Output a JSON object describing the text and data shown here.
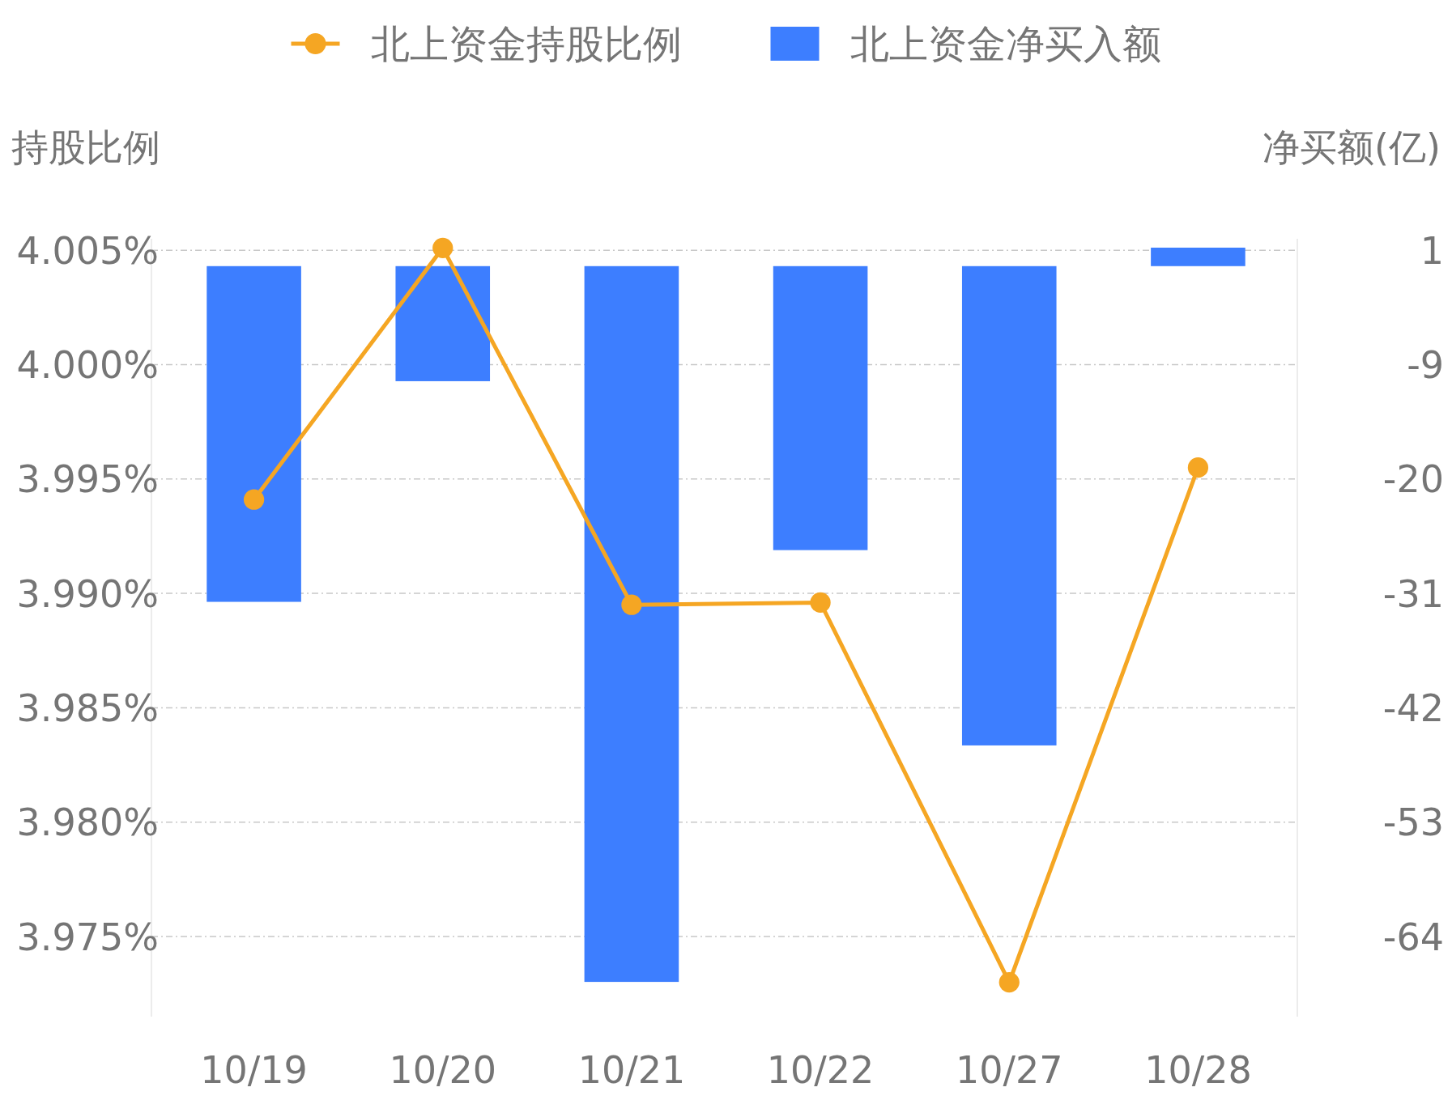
{
  "chart_data": {
    "type": "bar",
    "categories": [
      "10/19",
      "10/20",
      "10/21",
      "10/22",
      "10/27",
      "10/28"
    ],
    "ylabel": "持股比例",
    "y2label": "净买额(亿)",
    "series": [
      {
        "name": "北上资金持股比例",
        "type": "line",
        "color": "#f5a623",
        "values": [
          3.9941,
          4.0051,
          3.9895,
          3.9896,
          3.973,
          3.9955
        ]
      },
      {
        "name": "北上资金净买入额",
        "axis": "y2",
        "color": "#3d7eff",
        "values": [
          -31.8,
          -10.9,
          -67.8,
          -26.9,
          -45.4,
          1.75
        ]
      }
    ],
    "ylim": [
      3.9715,
      4.0055
    ],
    "yticks": [
      {
        "value": 3.975,
        "label": "3.975%"
      },
      {
        "value": 3.98,
        "label": "3.980%"
      },
      {
        "value": 3.985,
        "label": "3.985%"
      },
      {
        "value": 3.99,
        "label": "3.990%"
      },
      {
        "value": 3.995,
        "label": "3.995%"
      },
      {
        "value": 4.0,
        "label": "4.000%"
      },
      {
        "value": 4.005,
        "label": "4.005%"
      }
    ],
    "y2lim": [
      -71.09,
      2.59
    ],
    "y2ticks": [
      {
        "value": -63.5,
        "label": "-64"
      },
      {
        "value": -52.67,
        "label": "-53"
      },
      {
        "value": -41.83,
        "label": "-42"
      },
      {
        "value": -31,
        "label": "-31"
      },
      {
        "value": -20.17,
        "label": "-20"
      },
      {
        "value": -9.33,
        "label": "-9"
      },
      {
        "value": 1.5,
        "label": "1"
      }
    ],
    "grid": "y",
    "legend": "top",
    "marker": "circle",
    "line_style": "solid"
  }
}
